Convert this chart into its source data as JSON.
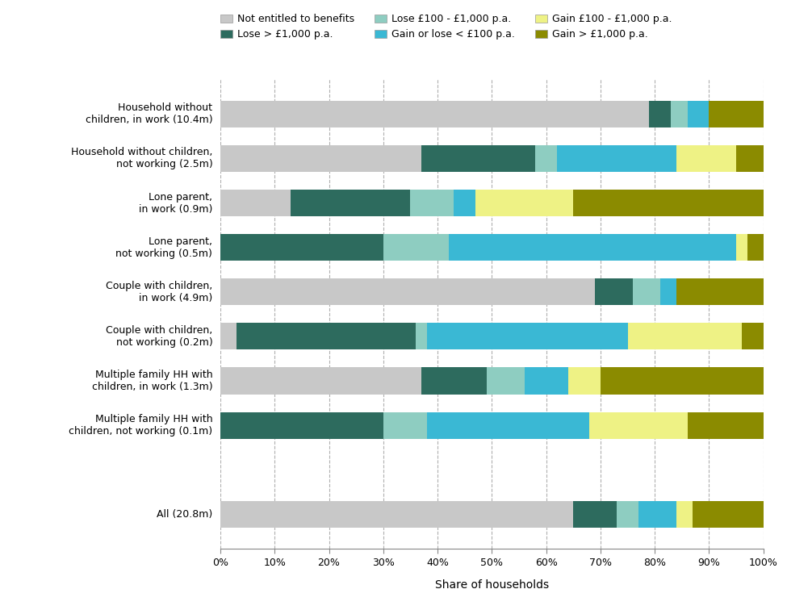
{
  "categories": [
    "Household without\nchildren, in work (10.4m)",
    "Household without children,\nnot working (2.5m)",
    "Lone parent,\nin work (0.9m)",
    "Lone parent,\nnot working (0.5m)",
    "Couple with children,\nin work (4.9m)",
    "Couple with children,\nnot working (0.2m)",
    "Multiple family HH with\nchildren, in work (1.3m)",
    "Multiple family HH with\nchildren, not working (0.1m)",
    "",
    "All (20.8m)"
  ],
  "series_order": [
    "Not entitled to benefits",
    "Lose > £1,000 p.a.",
    "Lose £100 - £1,000 p.a.",
    "Gain or lose < £100 p.a.",
    "Gain £100 - £1,000 p.a.",
    "Gain > £1,000 p.a."
  ],
  "series": {
    "Not entitled to benefits": [
      79,
      37,
      13,
      0,
      69,
      3,
      37,
      0,
      0,
      65
    ],
    "Lose > £1,000 p.a.": [
      4,
      21,
      22,
      30,
      7,
      33,
      12,
      30,
      0,
      8
    ],
    "Lose £100 - £1,000 p.a.": [
      3,
      4,
      8,
      12,
      5,
      2,
      7,
      8,
      0,
      4
    ],
    "Gain or lose < £100 p.a.": [
      4,
      22,
      4,
      53,
      3,
      37,
      8,
      30,
      0,
      7
    ],
    "Gain £100 - £1,000 p.a.": [
      0,
      11,
      18,
      2,
      0,
      21,
      6,
      18,
      0,
      3
    ],
    "Gain > £1,000 p.a.": [
      10,
      5,
      35,
      3,
      16,
      4,
      30,
      14,
      0,
      13
    ]
  },
  "colors": {
    "Not entitled to benefits": "#c8c8c8",
    "Lose > £1,000 p.a.": "#2d6b5e",
    "Lose £100 - £1,000 p.a.": "#8ecdc1",
    "Gain or lose < £100 p.a.": "#3ab8d4",
    "Gain £100 - £1,000 p.a.": "#eef285",
    "Gain > £1,000 p.a.": "#8b8b00"
  },
  "legend_order": [
    "Not entitled to benefits",
    "Lose > £1,000 p.a.",
    "Lose £100 - £1,000 p.a.",
    "Gain or lose < £100 p.a.",
    "Gain £100 - £1,000 p.a.",
    "Gain > £1,000 p.a."
  ],
  "xlabel": "Share of households",
  "background_color": "#ffffff",
  "figsize": [
    9.75,
    7.56
  ],
  "dpi": 100
}
